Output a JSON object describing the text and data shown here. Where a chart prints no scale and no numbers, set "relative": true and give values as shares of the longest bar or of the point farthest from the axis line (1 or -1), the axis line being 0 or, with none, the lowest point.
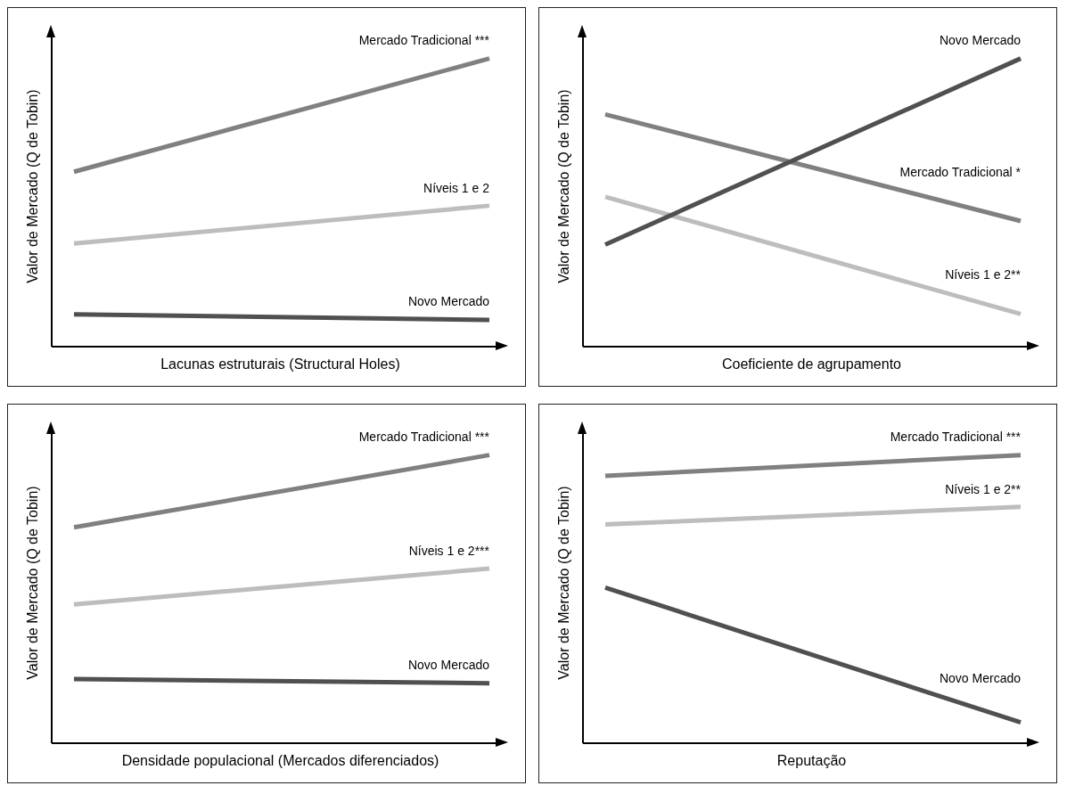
{
  "chart_data": [
    {
      "type": "line",
      "relative": true,
      "xlabel": "Lacunas estruturais (Structural Holes)",
      "ylabel": "Valor de Mercado (Q de Tobin)",
      "categories": [
        null,
        null
      ],
      "legend": false,
      "marker": "none",
      "series": [
        {
          "name": "Mercado Tradicional ***",
          "color": "#808080",
          "values": [
            0.607,
            1
          ]
        },
        {
          "name": "Níveis 1 e 2",
          "color": "#bdbdbd",
          "values": [
            0.358,
            0.489
          ]
        },
        {
          "name": "Novo Mercado",
          "color": "#505050",
          "values": [
            0.112,
            0.093
          ]
        }
      ]
    },
    {
      "type": "line",
      "relative": true,
      "xlabel": "Coeficiente de agrupamento",
      "ylabel": "Valor de Mercado (Q de Tobin)",
      "categories": [
        null,
        null
      ],
      "legend": false,
      "marker": "none",
      "series": [
        {
          "name": "Novo Mercado",
          "color": "#505050",
          "values": [
            0.354,
            1
          ]
        },
        {
          "name": "Mercado Tradicional *",
          "color": "#808080",
          "values": [
            0.806,
            0.436
          ]
        },
        {
          "name": "Níveis 1 e 2**",
          "color": "#bdbdbd",
          "values": [
            0.52,
            0.113
          ]
        }
      ]
    },
    {
      "type": "line",
      "relative": true,
      "xlabel": "Densidade populacional (Mercados diferenciados)",
      "ylabel": "Valor de Mercado (Q de Tobin)",
      "categories": [
        null,
        null
      ],
      "legend": false,
      "marker": "none",
      "series": [
        {
          "name": "Mercado Tradicional ***",
          "color": "#808080",
          "values": [
            0.749,
            1
          ]
        },
        {
          "name": "Níveis 1 e 2***",
          "color": "#bdbdbd",
          "values": [
            0.482,
            0.606
          ]
        },
        {
          "name": "Novo Mercado",
          "color": "#505050",
          "values": [
            0.223,
            0.208
          ]
        }
      ]
    },
    {
      "type": "line",
      "relative": true,
      "xlabel": "Reputação",
      "ylabel": "Valor de Mercado (Q de Tobin)",
      "categories": [
        null,
        null
      ],
      "legend": false,
      "marker": "none",
      "series": [
        {
          "name": "Mercado Tradicional ***",
          "color": "#808080",
          "values": [
            0.928,
            1
          ]
        },
        {
          "name": "Níveis 1 e 2**",
          "color": "#bdbdbd",
          "values": [
            0.759,
            0.82
          ]
        },
        {
          "name": "Novo Mercado",
          "color": "#505050",
          "values": [
            0.54,
            0.072
          ]
        }
      ]
    }
  ]
}
